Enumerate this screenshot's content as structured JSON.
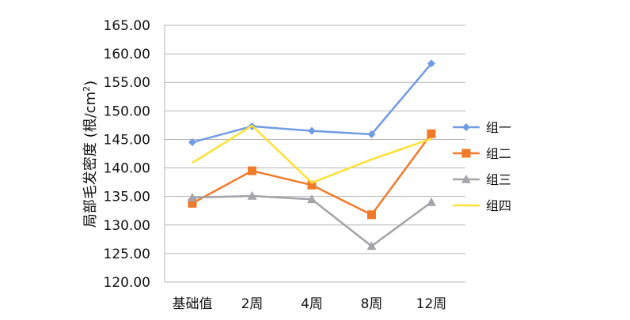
{
  "chart_data": {
    "type": "line",
    "ylabel": "局部毛发密度 (根/cm²)",
    "ylabel_main": "局部毛发密度 (根/cm",
    "ylabel_sup": "2",
    "ylabel_close": ")",
    "ylim": [
      120,
      165
    ],
    "yticks": [
      120,
      125,
      130,
      135,
      140,
      145,
      150,
      155,
      160,
      165
    ],
    "ytick_labels": [
      "120.00",
      "125.00",
      "130.00",
      "135.00",
      "140.00",
      "145.00",
      "150.00",
      "155.00",
      "160.00",
      "165.00"
    ],
    "categories": [
      "基础值",
      "2周",
      "4周",
      "8周",
      "12周"
    ],
    "grid": true,
    "legend_position": "right",
    "series": [
      {
        "name": "组一",
        "values": [
          144.5,
          147.3,
          146.5,
          145.9,
          158.3
        ],
        "color": "#6f9be3",
        "marker": "diamond"
      },
      {
        "name": "组二",
        "values": [
          133.8,
          139.5,
          137.0,
          131.8,
          146.0
        ],
        "color": "#f07a2a",
        "marker": "square"
      },
      {
        "name": "组三",
        "values": [
          134.8,
          135.1,
          134.5,
          126.3,
          134.0
        ],
        "color": "#a3a3a8",
        "marker": "triangle"
      },
      {
        "name": "组四",
        "values": [
          140.9,
          147.4,
          137.4,
          141.5,
          145.1
        ],
        "color": "#ffe033",
        "marker": "none"
      }
    ]
  }
}
